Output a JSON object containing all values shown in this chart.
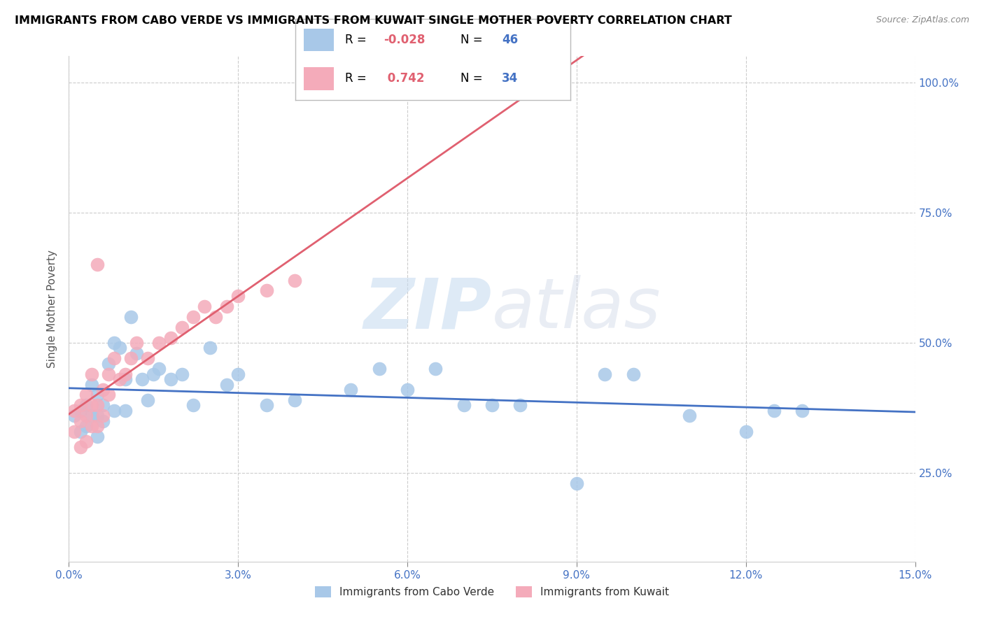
{
  "title": "IMMIGRANTS FROM CABO VERDE VS IMMIGRANTS FROM KUWAIT SINGLE MOTHER POVERTY CORRELATION CHART",
  "source": "Source: ZipAtlas.com",
  "ylabel": "Single Mother Poverty",
  "legend_label1": "Immigrants from Cabo Verde",
  "legend_label2": "Immigrants from Kuwait",
  "R1": -0.028,
  "N1": 46,
  "R2": 0.742,
  "N2": 34,
  "color1": "#A8C8E8",
  "color2": "#F4ABBA",
  "line_color1": "#4472C4",
  "line_color2": "#E06070",
  "xlim": [
    0.0,
    0.15
  ],
  "ylim": [
    0.08,
    1.05
  ],
  "xticks": [
    0.0,
    0.03,
    0.06,
    0.09,
    0.12,
    0.15
  ],
  "xtick_labels": [
    "0.0%",
    "3.0%",
    "6.0%",
    "9.0%",
    "12.0%",
    "15.0%"
  ],
  "yticks": [
    0.25,
    0.5,
    0.75,
    1.0
  ],
  "ytick_labels": [
    "25.0%",
    "50.0%",
    "75.0%",
    "100.0%"
  ],
  "watermark_zip": "ZIP",
  "watermark_atlas": "atlas",
  "cabo_verde_x": [
    0.001,
    0.002,
    0.002,
    0.003,
    0.003,
    0.004,
    0.004,
    0.005,
    0.005,
    0.005,
    0.006,
    0.006,
    0.007,
    0.008,
    0.008,
    0.009,
    0.01,
    0.01,
    0.011,
    0.012,
    0.013,
    0.014,
    0.015,
    0.016,
    0.018,
    0.02,
    0.022,
    0.025,
    0.028,
    0.03,
    0.035,
    0.04,
    0.05,
    0.055,
    0.06,
    0.065,
    0.07,
    0.075,
    0.08,
    0.09,
    0.095,
    0.1,
    0.11,
    0.12,
    0.125,
    0.13
  ],
  "cabo_verde_y": [
    0.36,
    0.37,
    0.33,
    0.38,
    0.34,
    0.36,
    0.42,
    0.32,
    0.36,
    0.4,
    0.35,
    0.38,
    0.46,
    0.5,
    0.37,
    0.49,
    0.43,
    0.37,
    0.55,
    0.48,
    0.43,
    0.39,
    0.44,
    0.45,
    0.43,
    0.44,
    0.38,
    0.49,
    0.42,
    0.44,
    0.38,
    0.39,
    0.41,
    0.45,
    0.41,
    0.45,
    0.38,
    0.38,
    0.38,
    0.23,
    0.44,
    0.44,
    0.36,
    0.33,
    0.37,
    0.37
  ],
  "kuwait_x": [
    0.001,
    0.001,
    0.002,
    0.002,
    0.002,
    0.003,
    0.003,
    0.003,
    0.004,
    0.004,
    0.004,
    0.005,
    0.005,
    0.005,
    0.006,
    0.006,
    0.007,
    0.007,
    0.008,
    0.009,
    0.01,
    0.011,
    0.012,
    0.014,
    0.016,
    0.018,
    0.02,
    0.022,
    0.024,
    0.026,
    0.028,
    0.03,
    0.035,
    0.04
  ],
  "kuwait_y": [
    0.33,
    0.37,
    0.3,
    0.35,
    0.38,
    0.31,
    0.36,
    0.4,
    0.34,
    0.38,
    0.44,
    0.34,
    0.38,
    0.65,
    0.36,
    0.41,
    0.4,
    0.44,
    0.47,
    0.43,
    0.44,
    0.47,
    0.5,
    0.47,
    0.5,
    0.51,
    0.53,
    0.55,
    0.57,
    0.55,
    0.57,
    0.59,
    0.6,
    0.62
  ]
}
